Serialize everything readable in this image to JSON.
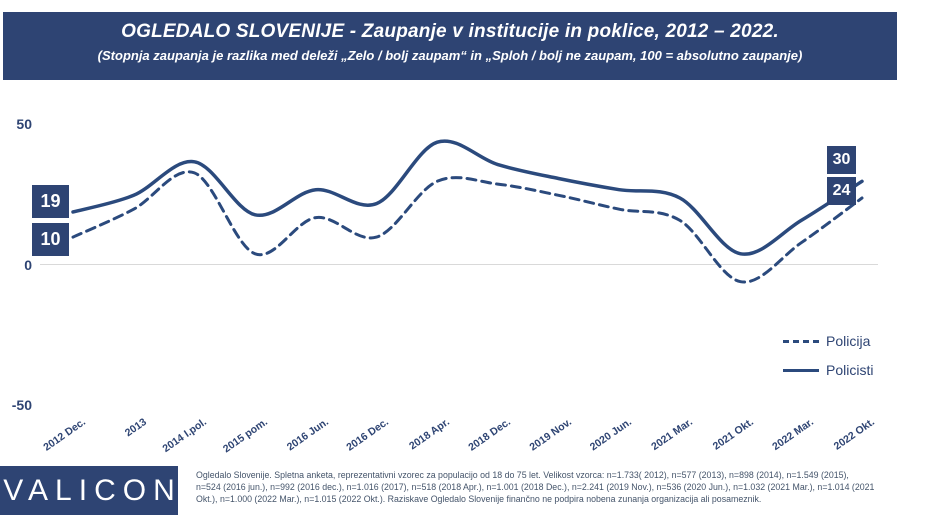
{
  "header": {
    "title": "OGLEDALO SLOVENIJE - Zaupanje v institucije in poklice, 2012 – 2022.",
    "subtitle": "(Stopnja zaupanja je razlika med deleži „Zelo / bolj zaupam“ in „Sploh / bolj ne zaupam, 100 = absolutno zaupanje)"
  },
  "chart_data": {
    "type": "line",
    "title": "OGLEDALO SLOVENIJE - Zaupanje v institucije in poklice, 2012 – 2022.",
    "categories": [
      "2012 Dec.",
      "2013",
      "2014 I.pol.",
      "2015 pom.",
      "2016 Jun.",
      "2016 Dec.",
      "2018 Apr.",
      "2018 Dec.",
      "2019 Nov.",
      "2020 Jun.",
      "2021 Mar.",
      "2021 Okt.",
      "2022 Mar.",
      "2022 Okt."
    ],
    "series": [
      {
        "name": "Policija",
        "line_style": "dashed",
        "values": [
          10,
          20,
          33,
          4,
          17,
          10,
          30,
          29,
          25,
          20,
          16,
          -6,
          8,
          24
        ],
        "start_label": "10",
        "end_label": "24"
      },
      {
        "name": "Policisti",
        "line_style": "solid",
        "values": [
          19,
          25,
          37,
          18,
          27,
          22,
          44,
          36,
          31,
          27,
          24,
          4,
          16,
          30
        ],
        "start_label": "19",
        "end_label": "30"
      }
    ],
    "ylim": [
      -50,
      50
    ],
    "yticks": [
      "50",
      "0",
      "-50"
    ],
    "grid": "horizontal zero line only",
    "legend_position": "right-middle",
    "line_color": "#2b4a7d"
  },
  "legend": {
    "items": [
      {
        "label": "Policija"
      },
      {
        "label": "Policisti"
      }
    ]
  },
  "footer": {
    "logo_text": "VALICON",
    "note": "Ogledalo Slovenije. Spletna anketa, reprezentativni vzorec za populacijo od 18 do 75 let. Velikost vzorca: n=1.733( 2012), n=577 (2013), n=898 (2014), n=1.549 (2015), n=524 (2016 jun.), n=992 (2016 dec.), n=1.016 (2017), n=518 (2018 Apr.), n=1.001 (2018 Dec.), n=2.241 (2019 Nov.), n=536 (2020 Jun.), n=1.032 (2021 Mar.), n=1.014 (2021 Okt.), n=1.000 (2022 Mar.), n=1.015 (2022 Okt.). Raziskave Ogledalo Slovenije finančno ne podpira nobena zunanja organizacija ali posameznik."
  },
  "colors": {
    "banner": "#2e4473",
    "line": "#2b4a7d",
    "badge": "#2e4473",
    "gridline": "#d9d9d9",
    "footnote_text": "#44546a"
  }
}
